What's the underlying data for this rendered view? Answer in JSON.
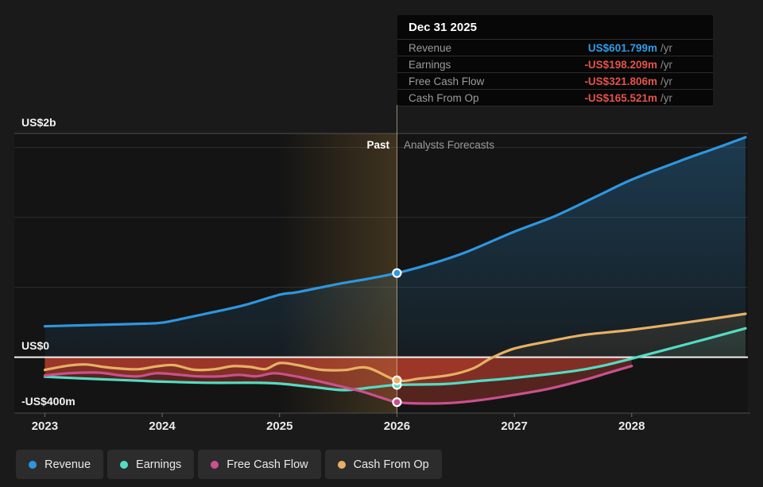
{
  "tooltip": {
    "title": "Dec 31 2025",
    "rows": [
      {
        "label": "Revenue",
        "value": "US$601.799m",
        "unit": "/yr",
        "value_color": "#2e9ce8"
      },
      {
        "label": "Earnings",
        "value": "-US$198.209m",
        "unit": "/yr",
        "value_color": "#e4534b"
      },
      {
        "label": "Free Cash Flow",
        "value": "-US$321.806m",
        "unit": "/yr",
        "value_color": "#e4534b"
      },
      {
        "label": "Cash From Op",
        "value": "-US$165.521m",
        "unit": "/yr",
        "value_color": "#e4534b"
      }
    ]
  },
  "annotations": {
    "past_label": "Past",
    "forecast_label": "Analysts Forecasts"
  },
  "y_axis_labels": {
    "max": "US$2b",
    "zero": "US$0",
    "min": "-US$400m"
  },
  "legend": [
    {
      "label": "Revenue",
      "color": "#2f96dd"
    },
    {
      "label": "Earnings",
      "color": "#53dcc3"
    },
    {
      "label": "Free Cash Flow",
      "color": "#c9518f"
    },
    {
      "label": "Cash From Op",
      "color": "#e7b064"
    }
  ],
  "colors": {
    "page_bg": "#1a1a1a",
    "plot_bg": "#141414",
    "grid": "#2d2d2d",
    "plot_top_border": "#3d3d3d",
    "zero_line": "#f2f2f2",
    "axis_line": "#4d4d4d",
    "tick": "#6a6a6a",
    "x_tick_text": "#eaeaea",
    "negative_fill": "rgba(206,66,50,0.36)",
    "past_band_tint": "rgba(185,140,60,0.26)",
    "hover_line": "rgba(222,204,164,0.65)",
    "marker_ring": "#ffffff"
  },
  "chart_data": {
    "type": "line",
    "units": "US$ millions per year",
    "x_range": [
      2022.74,
      2028.99
    ],
    "y_range": [
      -400,
      1600
    ],
    "x_ticks": [
      2023,
      2024,
      2025,
      2026,
      2027,
      2028
    ],
    "y_gridlines": [
      500,
      1000,
      1500
    ],
    "y_labeled_values": {
      "max": 2000,
      "zero": 0,
      "min": -400
    },
    "past_band": [
      2025,
      2026
    ],
    "divider_year": 2026,
    "legend_position": "bottom",
    "series": [
      {
        "name": "Revenue",
        "color": "#2f96dd",
        "points": [
          [
            2023.0,
            221
          ],
          [
            2023.3,
            228
          ],
          [
            2023.6,
            234
          ],
          [
            2023.85,
            240
          ],
          [
            2024.0,
            247
          ],
          [
            2024.2,
            280
          ],
          [
            2024.45,
            325
          ],
          [
            2024.7,
            372
          ],
          [
            2025.0,
            447
          ],
          [
            2025.15,
            465
          ],
          [
            2025.5,
            524
          ],
          [
            2025.75,
            560
          ],
          [
            2026.0,
            601.799
          ],
          [
            2026.3,
            670
          ],
          [
            2026.6,
            755
          ],
          [
            2027.0,
            898
          ],
          [
            2027.35,
            1010
          ],
          [
            2027.7,
            1150
          ],
          [
            2028.0,
            1270
          ],
          [
            2028.4,
            1400
          ],
          [
            2028.7,
            1490
          ],
          [
            2028.97,
            1573
          ]
        ]
      },
      {
        "name": "Earnings",
        "color": "#53dcc3",
        "points": [
          [
            2023.0,
            -140
          ],
          [
            2023.4,
            -155
          ],
          [
            2023.8,
            -168
          ],
          [
            2024.0,
            -175
          ],
          [
            2024.4,
            -183
          ],
          [
            2024.8,
            -183
          ],
          [
            2025.0,
            -189
          ],
          [
            2025.3,
            -215
          ],
          [
            2025.55,
            -235
          ],
          [
            2025.8,
            -215
          ],
          [
            2026.0,
            -198.209
          ],
          [
            2026.4,
            -192
          ],
          [
            2026.7,
            -170
          ],
          [
            2027.0,
            -148
          ],
          [
            2027.5,
            -100
          ],
          [
            2027.75,
            -62
          ],
          [
            2028.0,
            -10
          ],
          [
            2028.5,
            100
          ],
          [
            2028.97,
            206
          ]
        ]
      },
      {
        "name": "Free Cash Flow",
        "color": "#c9518f",
        "points": [
          [
            2023.0,
            -131
          ],
          [
            2023.2,
            -115
          ],
          [
            2023.45,
            -110
          ],
          [
            2023.65,
            -131
          ],
          [
            2023.8,
            -137
          ],
          [
            2023.95,
            -115
          ],
          [
            2024.15,
            -126
          ],
          [
            2024.3,
            -137
          ],
          [
            2024.5,
            -137
          ],
          [
            2024.65,
            -126
          ],
          [
            2024.8,
            -137
          ],
          [
            2024.95,
            -115
          ],
          [
            2025.1,
            -131
          ],
          [
            2025.35,
            -175
          ],
          [
            2025.55,
            -215
          ],
          [
            2025.7,
            -245
          ],
          [
            2025.85,
            -285
          ],
          [
            2026.0,
            -321.806
          ],
          [
            2026.2,
            -331
          ],
          [
            2026.45,
            -328
          ],
          [
            2026.7,
            -308
          ],
          [
            2027.0,
            -270
          ],
          [
            2027.3,
            -225
          ],
          [
            2027.6,
            -162
          ],
          [
            2027.8,
            -112
          ],
          [
            2028.0,
            -63
          ]
        ]
      },
      {
        "name": "Cash From Op",
        "color": "#e7b064",
        "points": [
          [
            2023.0,
            -91
          ],
          [
            2023.2,
            -60
          ],
          [
            2023.35,
            -52
          ],
          [
            2023.5,
            -70
          ],
          [
            2023.65,
            -82
          ],
          [
            2023.8,
            -86
          ],
          [
            2023.95,
            -66
          ],
          [
            2024.1,
            -57
          ],
          [
            2024.27,
            -90
          ],
          [
            2024.45,
            -86
          ],
          [
            2024.6,
            -64
          ],
          [
            2024.75,
            -70
          ],
          [
            2024.88,
            -85
          ],
          [
            2025.0,
            -42
          ],
          [
            2025.15,
            -56
          ],
          [
            2025.35,
            -90
          ],
          [
            2025.55,
            -92
          ],
          [
            2025.75,
            -76
          ],
          [
            2026.0,
            -165.521
          ],
          [
            2026.2,
            -152
          ],
          [
            2026.45,
            -128
          ],
          [
            2026.65,
            -80
          ],
          [
            2026.8,
            -8
          ],
          [
            2027.0,
            62
          ],
          [
            2027.3,
            115
          ],
          [
            2027.6,
            160
          ],
          [
            2028.0,
            196
          ],
          [
            2028.5,
            252
          ],
          [
            2028.97,
            310
          ]
        ]
      }
    ]
  }
}
